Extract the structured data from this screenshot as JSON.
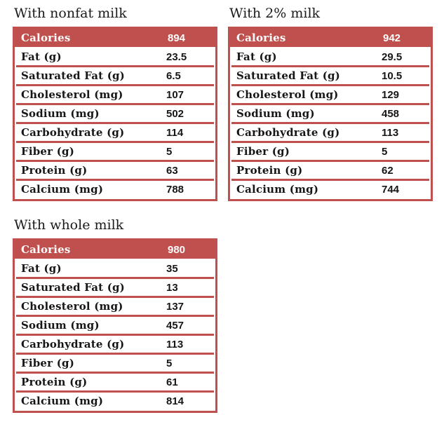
{
  "accent_color": "#c0504d",
  "tables": [
    {
      "title": "With nonfat milk",
      "header": {
        "label": "Calories",
        "value": "894"
      },
      "rows": [
        {
          "label": "Fat (g)",
          "value": "23.5"
        },
        {
          "label": "Saturated Fat (g)",
          "value": "6.5"
        },
        {
          "label": "Cholesterol (mg)",
          "value": "107"
        },
        {
          "label": "Sodium (mg)",
          "value": "502"
        },
        {
          "label": "Carbohydrate (g)",
          "value": "114"
        },
        {
          "label": "Fiber (g)",
          "value": "5"
        },
        {
          "label": "Protein (g)",
          "value": "63"
        },
        {
          "label": "Calcium (mg)",
          "value": "788"
        }
      ]
    },
    {
      "title": "With 2% milk",
      "header": {
        "label": "Calories",
        "value": "942"
      },
      "rows": [
        {
          "label": "Fat (g)",
          "value": "29.5"
        },
        {
          "label": "Saturated Fat (g)",
          "value": "10.5"
        },
        {
          "label": "Cholesterol (mg)",
          "value": "129"
        },
        {
          "label": "Sodium (mg)",
          "value": "458"
        },
        {
          "label": "Carbohydrate (g)",
          "value": "113"
        },
        {
          "label": "Fiber (g)",
          "value": "5"
        },
        {
          "label": "Protein (g)",
          "value": "62"
        },
        {
          "label": "Calcium (mg)",
          "value": "744"
        }
      ]
    },
    {
      "title": "With whole milk",
      "header": {
        "label": "Calories",
        "value": "980"
      },
      "rows": [
        {
          "label": "Fat (g)",
          "value": "35"
        },
        {
          "label": "Saturated Fat (g)",
          "value": "13"
        },
        {
          "label": "Cholesterol (mg)",
          "value": "137"
        },
        {
          "label": "Sodium (mg)",
          "value": "457"
        },
        {
          "label": "Carbohydrate (g)",
          "value": "113"
        },
        {
          "label": "Fiber (g)",
          "value": "5"
        },
        {
          "label": "Protein (g)",
          "value": "61"
        },
        {
          "label": "Calcium (mg)",
          "value": "814"
        }
      ]
    }
  ]
}
